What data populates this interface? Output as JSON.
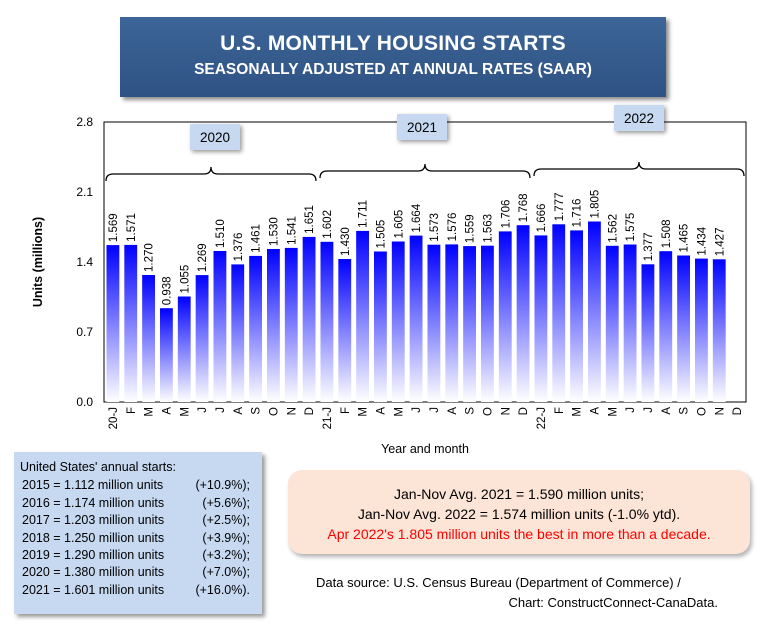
{
  "header": {
    "title": "U.S. MONTHLY HOUSING STARTS",
    "subtitle": "SEASONALLY ADJUSTED AT ANNUAL RATES (SAAR)"
  },
  "colors": {
    "bar_top": "#0000ff",
    "bar_bottom": "#ffffff",
    "title_bg": "#2e5283",
    "highlight": "#ff0000"
  },
  "chart_data": {
    "type": "bar",
    "xlabel": "Year and month",
    "ylabel": "Units (millions)",
    "ylim": [
      0,
      2.8
    ],
    "yticks": [
      "0.0",
      "0.7",
      "1.4",
      "2.1",
      "2.8"
    ],
    "grid": false,
    "categories": [
      "20-J",
      "F",
      "M",
      "A",
      "M",
      "J",
      "J",
      "A",
      "S",
      "O",
      "N",
      "D",
      "21-J",
      "F",
      "M",
      "A",
      "M",
      "J",
      "J",
      "A",
      "S",
      "O",
      "N",
      "D",
      "22-J",
      "F",
      "M",
      "A",
      "M",
      "J",
      "J",
      "A",
      "S",
      "O",
      "N",
      "D"
    ],
    "values": [
      1.569,
      1.571,
      1.27,
      0.938,
      1.055,
      1.269,
      1.51,
      1.376,
      1.461,
      1.53,
      1.541,
      1.651,
      1.602,
      1.43,
      1.711,
      1.505,
      1.605,
      1.664,
      1.573,
      1.576,
      1.559,
      1.563,
      1.706,
      1.768,
      1.666,
      1.777,
      1.716,
      1.805,
      1.562,
      1.575,
      1.377,
      1.508,
      1.465,
      1.434,
      1.427,
      null
    ],
    "data_labels": [
      "1.569",
      "1.571",
      "1.270",
      "0.938",
      "1.055",
      "1.269",
      "1.510",
      "1.376",
      "1.461",
      "1.530",
      "1.541",
      "1.651",
      "1.602",
      "1.430",
      "1.711",
      "1.505",
      "1.605",
      "1.664",
      "1.573",
      "1.576",
      "1.559",
      "1.563",
      "1.706",
      "1.768",
      "1.666",
      "1.777",
      "1.716",
      "1.805",
      "1.562",
      "1.575",
      "1.377",
      "1.508",
      "1.465",
      "1.434",
      "1.427",
      ""
    ],
    "year_groups": [
      {
        "label": "2020",
        "start": 0,
        "end": 11
      },
      {
        "label": "2021",
        "start": 12,
        "end": 23
      },
      {
        "label": "2022",
        "start": 24,
        "end": 35
      }
    ]
  },
  "annual_box": {
    "heading": "United States' annual starts:",
    "rows": [
      {
        "text": "2015 = 1.112 million units",
        "change": "(+10.9%);"
      },
      {
        "text": "2016 = 1.174 million units",
        "change": "(+5.6%);"
      },
      {
        "text": "2017 = 1.203 million units",
        "change": "(+2.5%);"
      },
      {
        "text": "2018 = 1.250 million units",
        "change": "(+3.9%);"
      },
      {
        "text": "2019 = 1.290 million units",
        "change": "(+3.2%);"
      },
      {
        "text": "2020 = 1.380 million units",
        "change": "(+7.0%);"
      },
      {
        "text": "2021 = 1.601 million units",
        "change": "(+16.0%)."
      }
    ]
  },
  "avg_box": {
    "line1": "Jan-Nov Avg. 2021 = 1.590 million units;",
    "line2": "Jan-Nov Avg. 2022 = 1.574 million units (-1.0% ytd).",
    "line3": "Apr 2022's 1.805 million units the best in more than a decade."
  },
  "source": {
    "line1": "Data source: U.S. Census Bureau (Department of Commerce) /",
    "line2": "Chart: ConstructConnect-CanaData."
  }
}
